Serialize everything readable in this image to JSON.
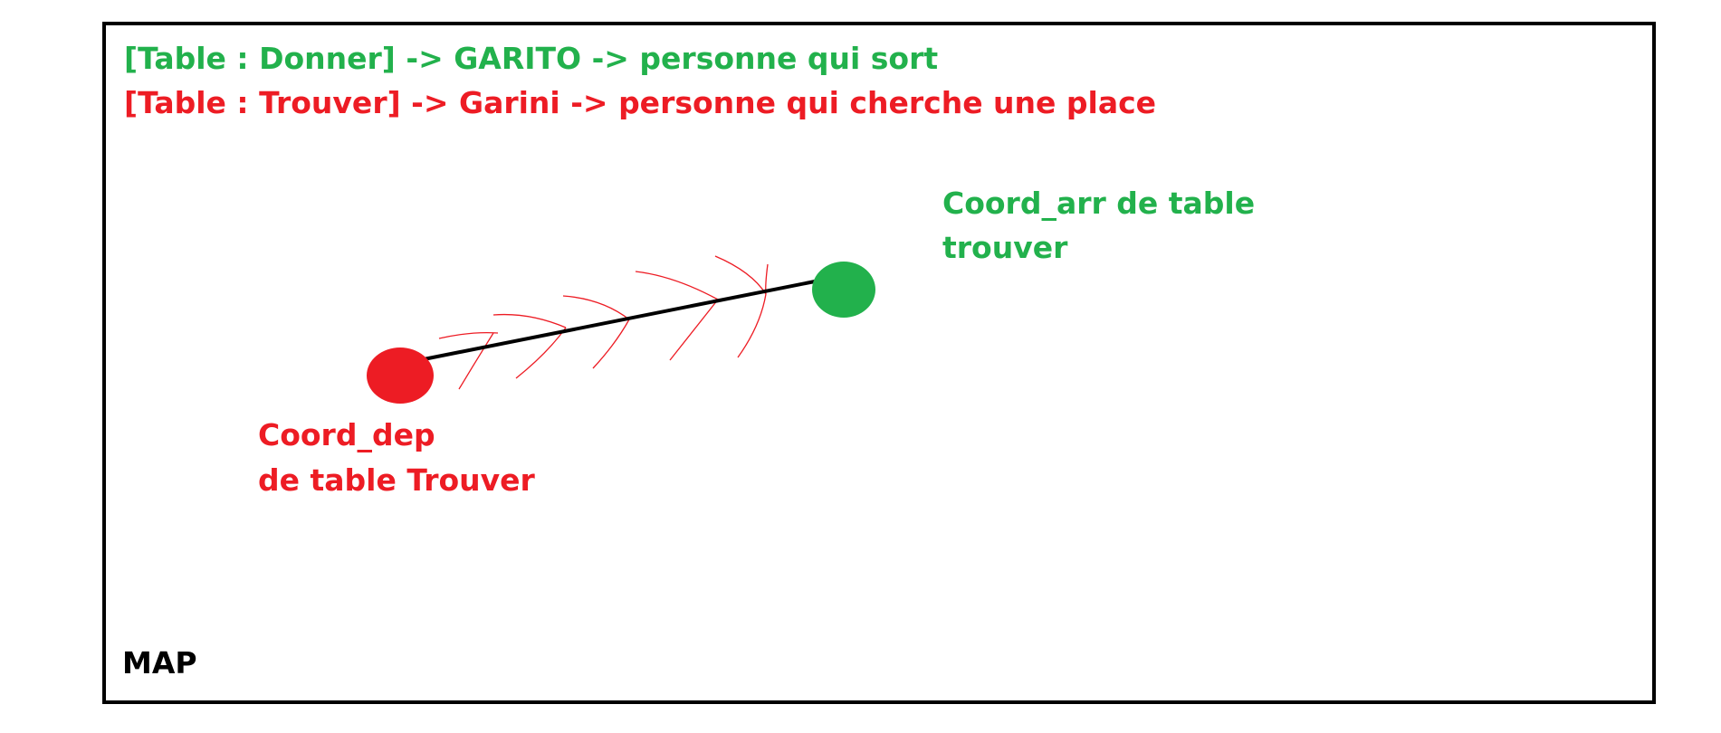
{
  "legend": {
    "line1": "[Table : Donner] -> GARITO -> personne qui sort",
    "line2": "[Table : Trouver] -> Garini -> personne qui cherche une place"
  },
  "labels": {
    "arrival_line1": "Coord_arr de table",
    "arrival_line2": "trouver",
    "departure_line1": "Coord_dep",
    "departure_line2": "de table Trouver",
    "map": "MAP"
  },
  "colors": {
    "green": "#22b14c",
    "red": "#ed1c24",
    "border": "#000000"
  }
}
